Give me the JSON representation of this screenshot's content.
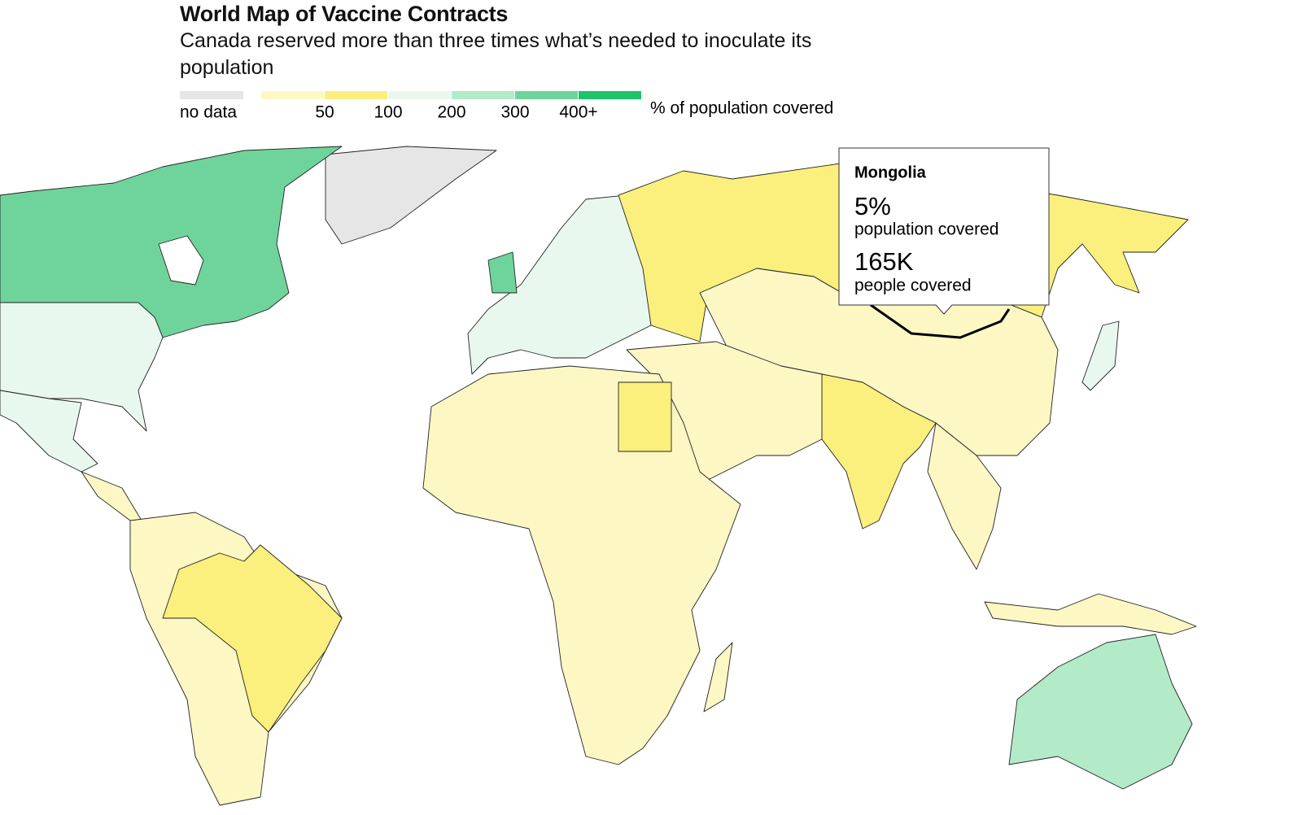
{
  "header": {
    "title": "World Map of Vaccine Contracts",
    "subtitle": "Canada reserved more than three times what’s needed to inoculate its population"
  },
  "legend": {
    "no_data": {
      "label": "no data",
      "color": "#e6e6e6"
    },
    "colors": [
      "#fdf7c4",
      "#fbef7d",
      "#e9f8ef",
      "#b3eac7",
      "#6fd49b",
      "#1cc46b"
    ],
    "ticks": [
      "50",
      "100",
      "200",
      "300",
      "400+"
    ],
    "unit": "% of population covered"
  },
  "tooltip": {
    "country": "Mongolia",
    "share": "5%",
    "share_label": "population covered",
    "people": "165K",
    "people_label": "people covered"
  }
}
